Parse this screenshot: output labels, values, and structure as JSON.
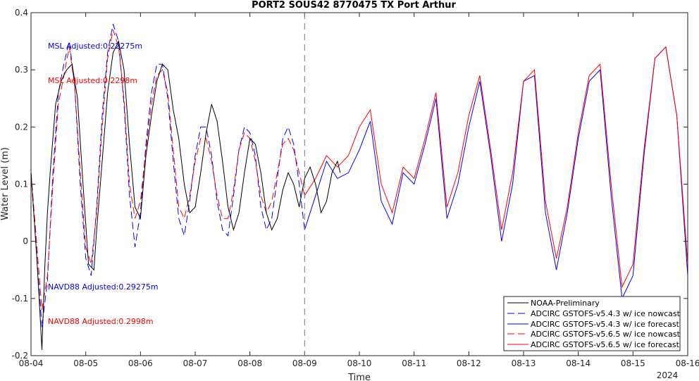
{
  "chart_data": {
    "type": "line",
    "title": "PORT2 SOUS42 8770475 TX Port Arthur",
    "xlabel": "Time",
    "ylabel": "Water Level (m)",
    "year_label": "2024",
    "xlim": [
      "08-04",
      "08-16"
    ],
    "ylim": [
      -0.2,
      0.4
    ],
    "x_ticks": [
      "08-04",
      "08-05",
      "08-06",
      "08-07",
      "08-08",
      "08-09",
      "08-10",
      "08-11",
      "08-12",
      "08-13",
      "08-14",
      "08-15",
      "08-16"
    ],
    "y_ticks": [
      -0.2,
      -0.1,
      0,
      0.1,
      0.2,
      0.3,
      0.4
    ],
    "y_tick_labels": [
      "-0.2",
      "-0.1",
      "0",
      "0.1",
      "0.2",
      "0.3",
      "0.4"
    ],
    "vertical_marker": "08-09",
    "grid": false,
    "legend_position": "bottom-right",
    "annotations": [
      {
        "text": "MSL Adjusted:0.22275m",
        "color": "#0000ff"
      },
      {
        "text": "MSL Adjusted:0.2298m",
        "color": "#ff0000"
      },
      {
        "text": "NAVD88 Adjusted:0.29275m",
        "color": "#0000ff"
      },
      {
        "text": "NAVD88 Adjusted:0.2998m",
        "color": "#ff0000"
      }
    ],
    "series": [
      {
        "name": "NOAA-Preliminary",
        "color": "#000000",
        "dash": "solid",
        "x": [
          0,
          0.05,
          0.1,
          0.15,
          0.2,
          0.25,
          0.3,
          0.35,
          0.45,
          0.55,
          0.65,
          0.75,
          0.85,
          0.95,
          1.05,
          1.15,
          1.2,
          1.3,
          1.4,
          1.5,
          1.6,
          1.7,
          1.8,
          1.9,
          2.0,
          2.1,
          2.2,
          2.3,
          2.4,
          2.5,
          2.6,
          2.7,
          2.8,
          2.9,
          3.0,
          3.1,
          3.2,
          3.3,
          3.4,
          3.5,
          3.6,
          3.7,
          3.8,
          3.9,
          4.0,
          4.1,
          4.2,
          4.3,
          4.4,
          4.5,
          4.6,
          4.7,
          4.8,
          4.9,
          5.0,
          5.1,
          5.2,
          5.3,
          5.4,
          5.5,
          5.6,
          5.65
        ],
        "y": [
          0.12,
          0.05,
          -0.02,
          -0.1,
          -0.19,
          -0.05,
          0.05,
          0.12,
          0.24,
          0.28,
          0.3,
          0.31,
          0.25,
          0.1,
          -0.04,
          -0.05,
          0.02,
          0.14,
          0.26,
          0.33,
          0.35,
          0.3,
          0.17,
          0.06,
          0.04,
          0.15,
          0.22,
          0.28,
          0.31,
          0.3,
          0.23,
          0.18,
          0.1,
          0.05,
          0.06,
          0.12,
          0.19,
          0.24,
          0.21,
          0.14,
          0.06,
          0.02,
          0.05,
          0.12,
          0.18,
          0.17,
          0.12,
          0.05,
          0.02,
          0.04,
          0.09,
          0.12,
          0.1,
          0.06,
          0.11,
          0.13,
          0.1,
          0.05,
          0.07,
          0.12,
          0.14,
          0.12
        ]
      },
      {
        "name": "ADCIRC GSTOFS-v5.4.3 w/ ice nowcast",
        "color": "#0000ff",
        "dash": "dashed",
        "x": [
          0,
          0.1,
          0.2,
          0.3,
          0.4,
          0.5,
          0.6,
          0.7,
          0.8,
          0.9,
          1.0,
          1.1,
          1.2,
          1.3,
          1.4,
          1.5,
          1.6,
          1.7,
          1.8,
          1.9,
          2.0,
          2.1,
          2.2,
          2.3,
          2.4,
          2.5,
          2.6,
          2.7,
          2.8,
          2.9,
          3.0,
          3.1,
          3.2,
          3.3,
          3.4,
          3.5,
          3.6,
          3.7,
          3.8,
          3.9,
          4.0,
          4.1,
          4.2,
          4.3,
          4.4,
          4.5,
          4.6,
          4.7,
          4.8,
          4.9,
          5.0
        ],
        "y": [
          0.12,
          -0.02,
          -0.15,
          -0.07,
          0.12,
          0.26,
          0.31,
          0.35,
          0.27,
          0.1,
          -0.03,
          -0.06,
          0.06,
          0.22,
          0.33,
          0.38,
          0.35,
          0.24,
          0.08,
          -0.01,
          0.05,
          0.17,
          0.26,
          0.31,
          0.31,
          0.25,
          0.14,
          0.04,
          0.01,
          0.07,
          0.15,
          0.2,
          0.2,
          0.15,
          0.07,
          0.02,
          0.01,
          0.08,
          0.16,
          0.2,
          0.19,
          0.15,
          0.06,
          0.02,
          0.04,
          0.11,
          0.18,
          0.2,
          0.17,
          0.1,
          0.02
        ]
      },
      {
        "name": "ADCIRC GSTOFS-v5.4.3 w/ ice forecast",
        "color": "#0000ff",
        "dash": "solid",
        "x": [
          5.0,
          5.2,
          5.4,
          5.6,
          5.8,
          6.0,
          6.2,
          6.4,
          6.6,
          6.8,
          7.0,
          7.2,
          7.4,
          7.6,
          7.8,
          8.0,
          8.2,
          8.4,
          8.6,
          8.8,
          9.0,
          9.2,
          9.4,
          9.6,
          9.8,
          10.0,
          10.2,
          10.4,
          10.6,
          10.8,
          11.0,
          11.2,
          11.4,
          11.6,
          11.8,
          12.0
        ],
        "y": [
          0.02,
          0.08,
          0.14,
          0.11,
          0.12,
          0.16,
          0.21,
          0.07,
          0.03,
          0.12,
          0.1,
          0.17,
          0.25,
          0.04,
          0.1,
          0.2,
          0.28,
          0.15,
          0.0,
          0.1,
          0.28,
          0.29,
          0.05,
          -0.05,
          0.05,
          0.18,
          0.28,
          0.3,
          0.08,
          -0.1,
          -0.06,
          0.15,
          0.32,
          0.34,
          0.22,
          -0.06
        ]
      },
      {
        "name": "ADCIRC GSTOFS-v5.6.5 w/ ice nowcast",
        "color": "#ff0000",
        "dash": "dashed",
        "x": [
          0,
          0.1,
          0.2,
          0.3,
          0.4,
          0.5,
          0.6,
          0.7,
          0.8,
          0.9,
          1.0,
          1.1,
          1.2,
          1.3,
          1.4,
          1.5,
          1.6,
          1.7,
          1.8,
          1.9,
          2.0,
          2.1,
          2.2,
          2.3,
          2.4,
          2.5,
          2.6,
          2.7,
          2.8,
          2.9,
          3.0,
          3.1,
          3.2,
          3.3,
          3.4,
          3.5,
          3.6,
          3.7,
          3.8,
          3.9,
          4.0,
          4.1,
          4.2,
          4.3,
          4.4,
          4.5,
          4.6,
          4.7,
          4.8,
          4.9,
          5.0
        ],
        "y": [
          0.12,
          0.0,
          -0.12,
          -0.06,
          0.1,
          0.24,
          0.29,
          0.34,
          0.27,
          0.12,
          -0.01,
          -0.04,
          0.05,
          0.2,
          0.32,
          0.37,
          0.34,
          0.25,
          0.1,
          0.04,
          0.07,
          0.16,
          0.24,
          0.29,
          0.3,
          0.26,
          0.16,
          0.06,
          0.04,
          0.08,
          0.14,
          0.18,
          0.18,
          0.14,
          0.08,
          0.04,
          0.04,
          0.09,
          0.16,
          0.19,
          0.18,
          0.14,
          0.08,
          0.05,
          0.07,
          0.12,
          0.17,
          0.18,
          0.16,
          0.12,
          0.08
        ]
      },
      {
        "name": "ADCIRC GSTOFS-v5.6.5 w/ ice forecast",
        "color": "#ff0000",
        "dash": "solid",
        "x": [
          5.0,
          5.2,
          5.4,
          5.6,
          5.8,
          6.0,
          6.2,
          6.4,
          6.6,
          6.8,
          7.0,
          7.2,
          7.4,
          7.6,
          7.8,
          8.0,
          8.2,
          8.4,
          8.6,
          8.8,
          9.0,
          9.2,
          9.4,
          9.6,
          9.8,
          10.0,
          10.2,
          10.4,
          10.6,
          10.8,
          11.0,
          11.2,
          11.4,
          11.6,
          11.8,
          12.0
        ],
        "y": [
          0.08,
          0.11,
          0.15,
          0.13,
          0.15,
          0.2,
          0.23,
          0.1,
          0.05,
          0.13,
          0.11,
          0.18,
          0.26,
          0.06,
          0.12,
          0.22,
          0.29,
          0.16,
          0.02,
          0.12,
          0.28,
          0.3,
          0.07,
          -0.03,
          0.06,
          0.19,
          0.29,
          0.31,
          0.1,
          -0.08,
          -0.04,
          0.16,
          0.32,
          0.34,
          0.22,
          -0.04
        ]
      }
    ]
  }
}
